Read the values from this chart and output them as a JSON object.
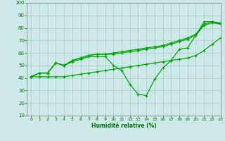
{
  "background_color": "#cce8e8",
  "grid_color": "#aacccc",
  "line_color": "#00aa00",
  "xlabel": "Humidité relative (%)",
  "xlabel_color": "#007700",
  "ylabel_color": "#007700",
  "ylim": [
    10,
    100
  ],
  "xlim": [
    -0.5,
    23
  ],
  "yticks": [
    10,
    20,
    30,
    40,
    50,
    60,
    70,
    80,
    90,
    100
  ],
  "xticks": [
    0,
    1,
    2,
    3,
    4,
    5,
    6,
    7,
    8,
    9,
    10,
    11,
    12,
    13,
    14,
    15,
    16,
    17,
    18,
    19,
    20,
    21,
    22,
    23
  ],
  "series": [
    [
      41,
      44,
      44,
      52,
      50,
      53,
      55,
      57,
      57,
      57,
      50,
      46,
      35,
      27,
      26,
      39,
      48,
      54,
      63,
      64,
      74,
      85,
      85,
      83
    ],
    [
      41,
      44,
      44,
      52,
      50,
      54,
      56,
      58,
      59,
      59,
      59,
      60,
      61,
      62,
      63,
      64,
      65,
      67,
      69,
      71,
      74,
      82,
      84,
      83
    ],
    [
      41,
      44,
      44,
      52,
      50,
      54,
      56,
      58,
      59,
      59,
      60,
      61,
      62,
      63,
      64,
      65,
      66,
      68,
      70,
      72,
      75,
      83,
      85,
      84
    ],
    [
      41,
      41,
      41,
      41,
      41,
      42,
      43,
      44,
      45,
      46,
      47,
      48,
      49,
      50,
      51,
      52,
      53,
      54,
      55,
      56,
      58,
      62,
      67,
      72
    ]
  ]
}
